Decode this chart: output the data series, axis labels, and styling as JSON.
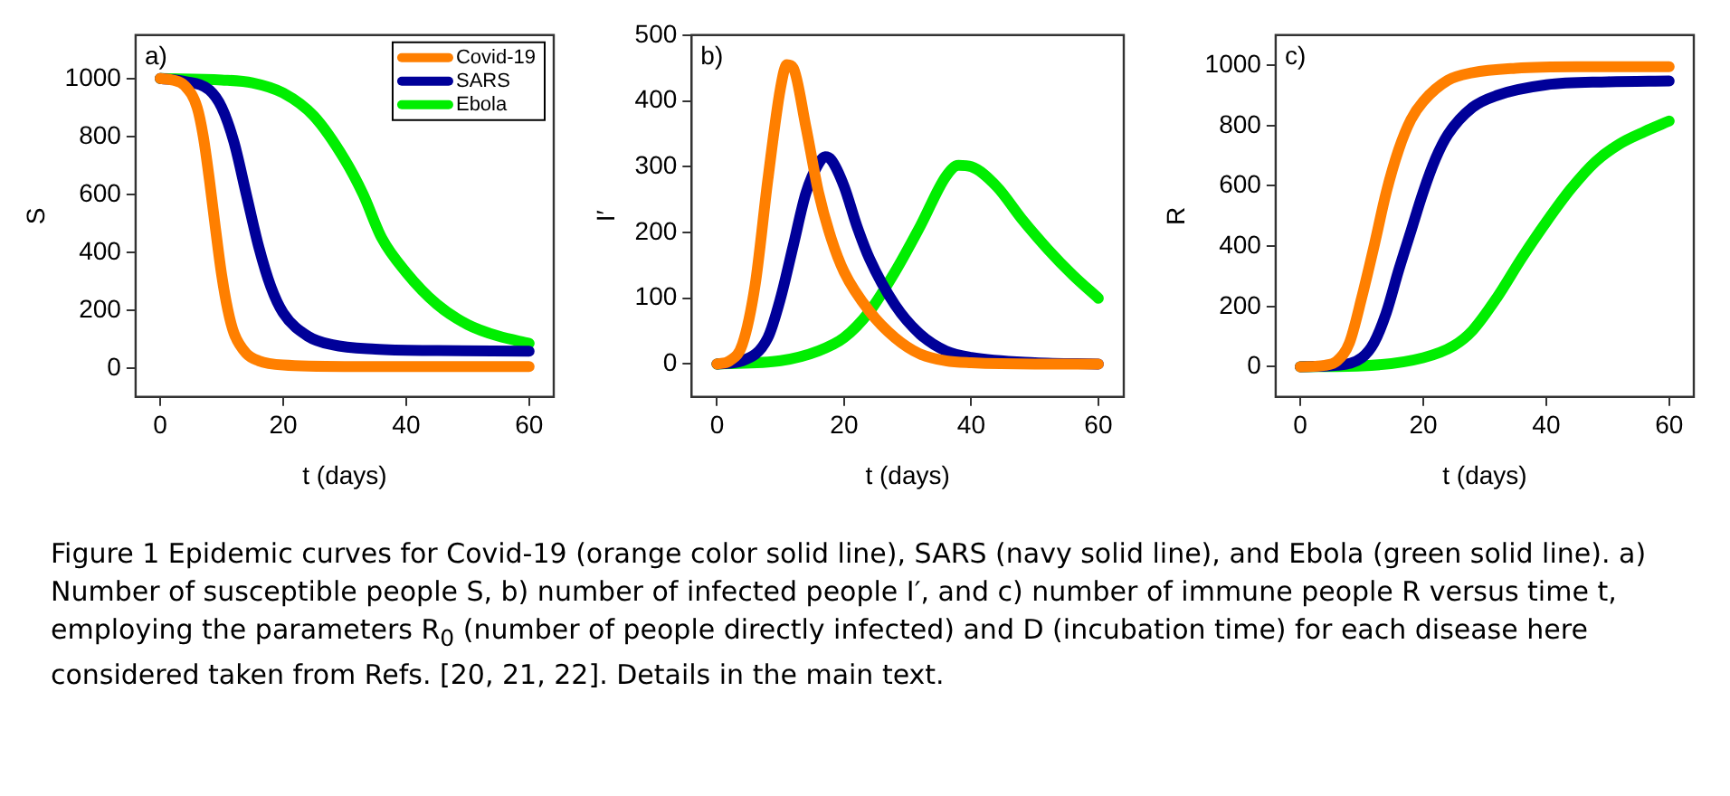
{
  "chart_data": [
    {
      "type": "line",
      "annotations": [
        "a)",
        "Figure 1 Epidemic curves for Covid-19 (orange color solid line), SARS (navy solid line), and Ebola (green solid line). a) Number of susceptible people S, b) number of infected people I′, and c) number of immune people R versus time t, employing the parameters R$_{0}$ (number of people directly infected) and D (incubation time) for each disease here considered taken from Refs. [20, 21, 22]. Details in the main text."
      ],
      "xlabel": "t (days)",
      "ylabel": "S",
      "xlim": [
        -4,
        64
      ],
      "xticks": [
        0,
        20,
        40,
        60
      ],
      "ylim": [
        -100,
        1150
      ],
      "yticks": [
        0,
        200,
        400,
        600,
        800,
        1000
      ],
      "legend": "top right",
      "grid": false,
      "line_style": "solid",
      "marker": "none",
      "series": [
        {
          "name": "Covid-19",
          "color": "#ff7f00",
          "x": [
            0,
            2,
            4,
            6,
            7,
            8,
            9,
            10,
            11,
            12,
            14,
            16,
            20,
            30,
            40,
            60
          ],
          "values": [
            1000,
            995,
            975,
            900,
            800,
            650,
            480,
            320,
            200,
            120,
            50,
            25,
            10,
            5,
            5,
            5
          ]
        },
        {
          "name": "SARS",
          "color": "#000099",
          "x": [
            0,
            4,
            8,
            10,
            12,
            14,
            16,
            18,
            20,
            24,
            28,
            35,
            45,
            60
          ],
          "values": [
            1000,
            990,
            960,
            900,
            780,
            600,
            420,
            280,
            190,
            110,
            80,
            65,
            60,
            58
          ]
        },
        {
          "name": "Ebola",
          "color": "#00ee00",
          "x": [
            0,
            10,
            15,
            20,
            25,
            30,
            33,
            36,
            40,
            45,
            50,
            55,
            60
          ],
          "values": [
            1000,
            995,
            985,
            950,
            870,
            720,
            600,
            450,
            330,
            220,
            150,
            110,
            85
          ]
        }
      ]
    },
    {
      "type": "line",
      "annotations": [
        "b)"
      ],
      "xlabel": "t (days)",
      "ylabel": "I′",
      "xlim": [
        -4,
        64
      ],
      "xticks": [
        0,
        20,
        40,
        60
      ],
      "ylim": [
        -50,
        500
      ],
      "yticks": [
        0,
        100,
        200,
        300,
        400,
        500
      ],
      "grid": false,
      "line_style": "solid",
      "marker": "none",
      "series": [
        {
          "color": "#ff7f00",
          "x": [
            0,
            2,
            4,
            6,
            8,
            10,
            11,
            12,
            14,
            16,
            18,
            20,
            24,
            28,
            32,
            36,
            40,
            50,
            60
          ],
          "values": [
            0,
            5,
            30,
            120,
            280,
            420,
            455,
            450,
            360,
            260,
            190,
            140,
            80,
            40,
            15,
            5,
            2,
            0,
            0
          ]
        },
        {
          "color": "#000099",
          "x": [
            0,
            4,
            8,
            10,
            12,
            14,
            16,
            17,
            18,
            20,
            22,
            24,
            28,
            32,
            36,
            40,
            50,
            60
          ],
          "values": [
            0,
            5,
            40,
            100,
            180,
            260,
            305,
            315,
            310,
            270,
            210,
            160,
            90,
            45,
            20,
            10,
            2,
            0
          ]
        },
        {
          "color": "#00ee00",
          "x": [
            0,
            10,
            16,
            20,
            24,
            28,
            32,
            36,
            38,
            40,
            44,
            48,
            52,
            56,
            60
          ],
          "values": [
            0,
            5,
            20,
            40,
            80,
            140,
            210,
            285,
            302,
            300,
            270,
            220,
            175,
            135,
            100
          ]
        }
      ]
    },
    {
      "type": "line",
      "annotations": [
        "c)"
      ],
      "xlabel": "t (days)",
      "ylabel": "R",
      "xlim": [
        -4,
        64
      ],
      "xticks": [
        0,
        20,
        40,
        60
      ],
      "ylim": [
        -100,
        1100
      ],
      "yticks": [
        0,
        200,
        400,
        600,
        800,
        1000
      ],
      "grid": false,
      "line_style": "solid",
      "marker": "none",
      "series": [
        {
          "color": "#ff7f00",
          "x": [
            0,
            4,
            6,
            8,
            10,
            12,
            14,
            16,
            18,
            20,
            24,
            28,
            35,
            45,
            60
          ],
          "values": [
            0,
            5,
            20,
            80,
            230,
            400,
            580,
            720,
            820,
            880,
            950,
            975,
            990,
            995,
            995
          ]
        },
        {
          "color": "#000099",
          "x": [
            0,
            6,
            10,
            12,
            14,
            16,
            18,
            20,
            22,
            24,
            28,
            32,
            40,
            50,
            60
          ],
          "values": [
            0,
            5,
            30,
            80,
            180,
            320,
            450,
            580,
            690,
            770,
            860,
            900,
            935,
            945,
            948
          ]
        },
        {
          "color": "#00ee00",
          "x": [
            0,
            10,
            20,
            25,
            28,
            32,
            36,
            40,
            44,
            48,
            52,
            56,
            60
          ],
          "values": [
            0,
            3,
            30,
            70,
            120,
            230,
            360,
            480,
            590,
            680,
            740,
            780,
            815
          ]
        }
      ]
    }
  ]
}
